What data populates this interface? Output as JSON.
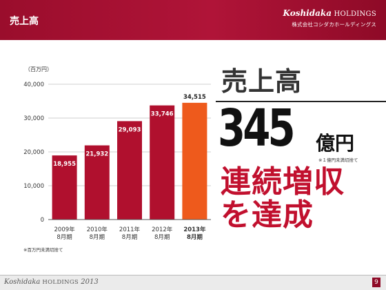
{
  "header": {
    "title": "売上高",
    "brand_italic": "Koshidaka",
    "brand_caps": " HOLDINGS",
    "brand_sub": "株式会社コシダカホールディングス"
  },
  "chart_data": {
    "type": "bar",
    "unit_label": "（百万円）",
    "categories": [
      "2009年\n8月期",
      "2010年\n8月期",
      "2011年\n8月期",
      "2012年\n8月期",
      "2013年\n8月期"
    ],
    "values": [
      18955,
      21932,
      29093,
      33746,
      34515
    ],
    "value_labels": [
      "18,955",
      "21,932",
      "29,093",
      "33,746",
      "34,515"
    ],
    "highlight_index": 4,
    "ylim": [
      0,
      40000
    ],
    "yticks": [
      "0",
      "10,000",
      "20,000",
      "30,000",
      "40,000"
    ],
    "ytick_values": [
      0,
      10000,
      20000,
      30000,
      40000
    ],
    "grid": true,
    "colors": {
      "bar": "#b0102e",
      "highlight": "#ee5a1c"
    },
    "footnote": "※百万円未満切捨て"
  },
  "summary": {
    "title": "売上高",
    "number": "345",
    "unit": "億円",
    "note": "※１億円未満切捨て",
    "achievement_line1": "連続増収",
    "achievement_line2": "を達成"
  },
  "footer": {
    "brand_italic": "Koshidaka",
    "brand_caps": " HOLDINGS",
    "year": " 2013",
    "page": "9"
  }
}
